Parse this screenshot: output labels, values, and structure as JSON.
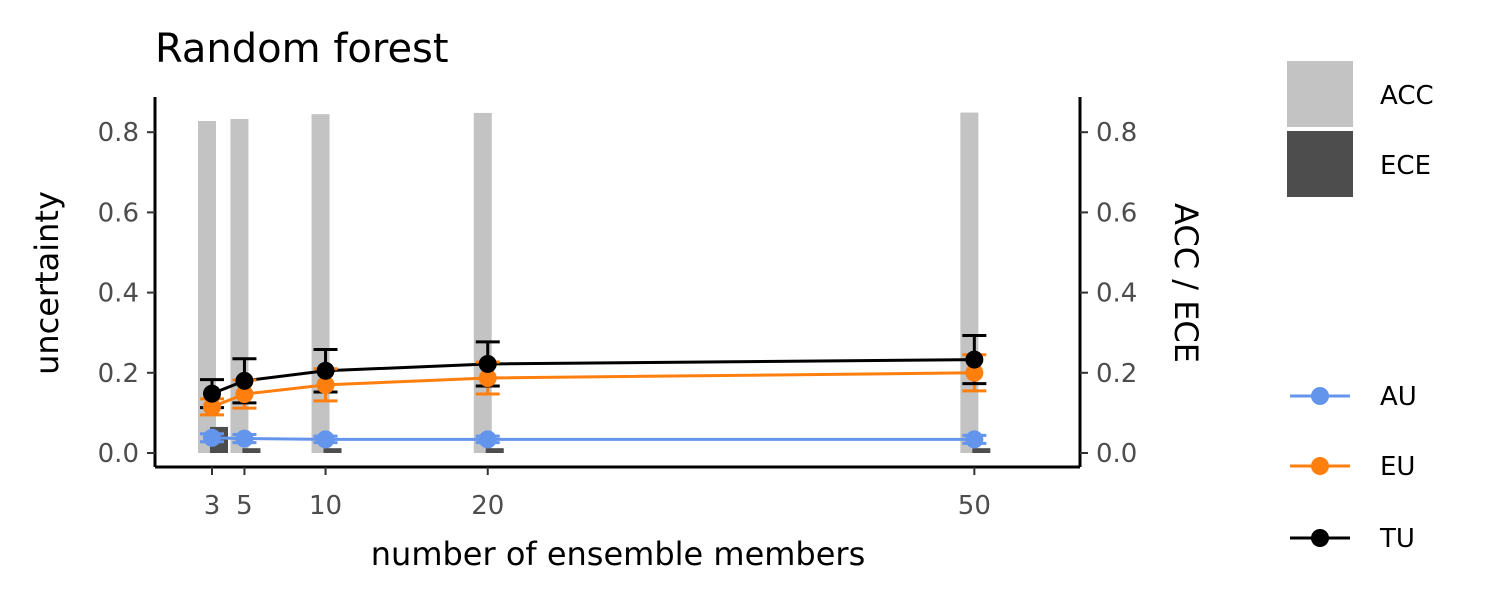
{
  "chart_data": {
    "type": "line",
    "title": "Random forest",
    "xlabel": "number of ensemble members",
    "ylabel": "uncertainty",
    "y2label": "ACC / ECE",
    "x": [
      3,
      5,
      10,
      20,
      50
    ],
    "x_ticks": [
      "3",
      "5",
      "10",
      "20",
      "50"
    ],
    "ylim": [
      -0.035,
      0.89
    ],
    "y_ticks": [
      "0.0",
      "0.2",
      "0.4",
      "0.6",
      "0.8"
    ],
    "y_tick_values": [
      0.0,
      0.2,
      0.4,
      0.6,
      0.8
    ],
    "bars": [
      {
        "name": "ACC",
        "color": "#c3c3c3",
        "values": [
          0.828,
          0.833,
          0.845,
          0.848,
          0.849
        ]
      },
      {
        "name": "ECE",
        "color": "#4d4d4d",
        "values": [
          0.065,
          0.012,
          0.012,
          0.012,
          0.012
        ]
      }
    ],
    "series": [
      {
        "name": "AU",
        "color": "#6495ed",
        "values": [
          0.038,
          0.036,
          0.034,
          0.034,
          0.034
        ],
        "err": [
          0.01,
          0.01,
          0.008,
          0.008,
          0.01
        ]
      },
      {
        "name": "EU",
        "color": "#ff7f0e",
        "values": [
          0.115,
          0.147,
          0.17,
          0.187,
          0.2
        ],
        "err": [
          0.02,
          0.035,
          0.04,
          0.04,
          0.045
        ]
      },
      {
        "name": "TU",
        "color": "#000000",
        "values": [
          0.148,
          0.18,
          0.205,
          0.222,
          0.233
        ],
        "err": [
          0.035,
          0.055,
          0.053,
          0.055,
          0.06
        ]
      }
    ],
    "legend": {
      "fill": [
        "ACC",
        "ECE"
      ],
      "lines": [
        "AU",
        "EU",
        "TU"
      ],
      "placement": "right"
    }
  }
}
